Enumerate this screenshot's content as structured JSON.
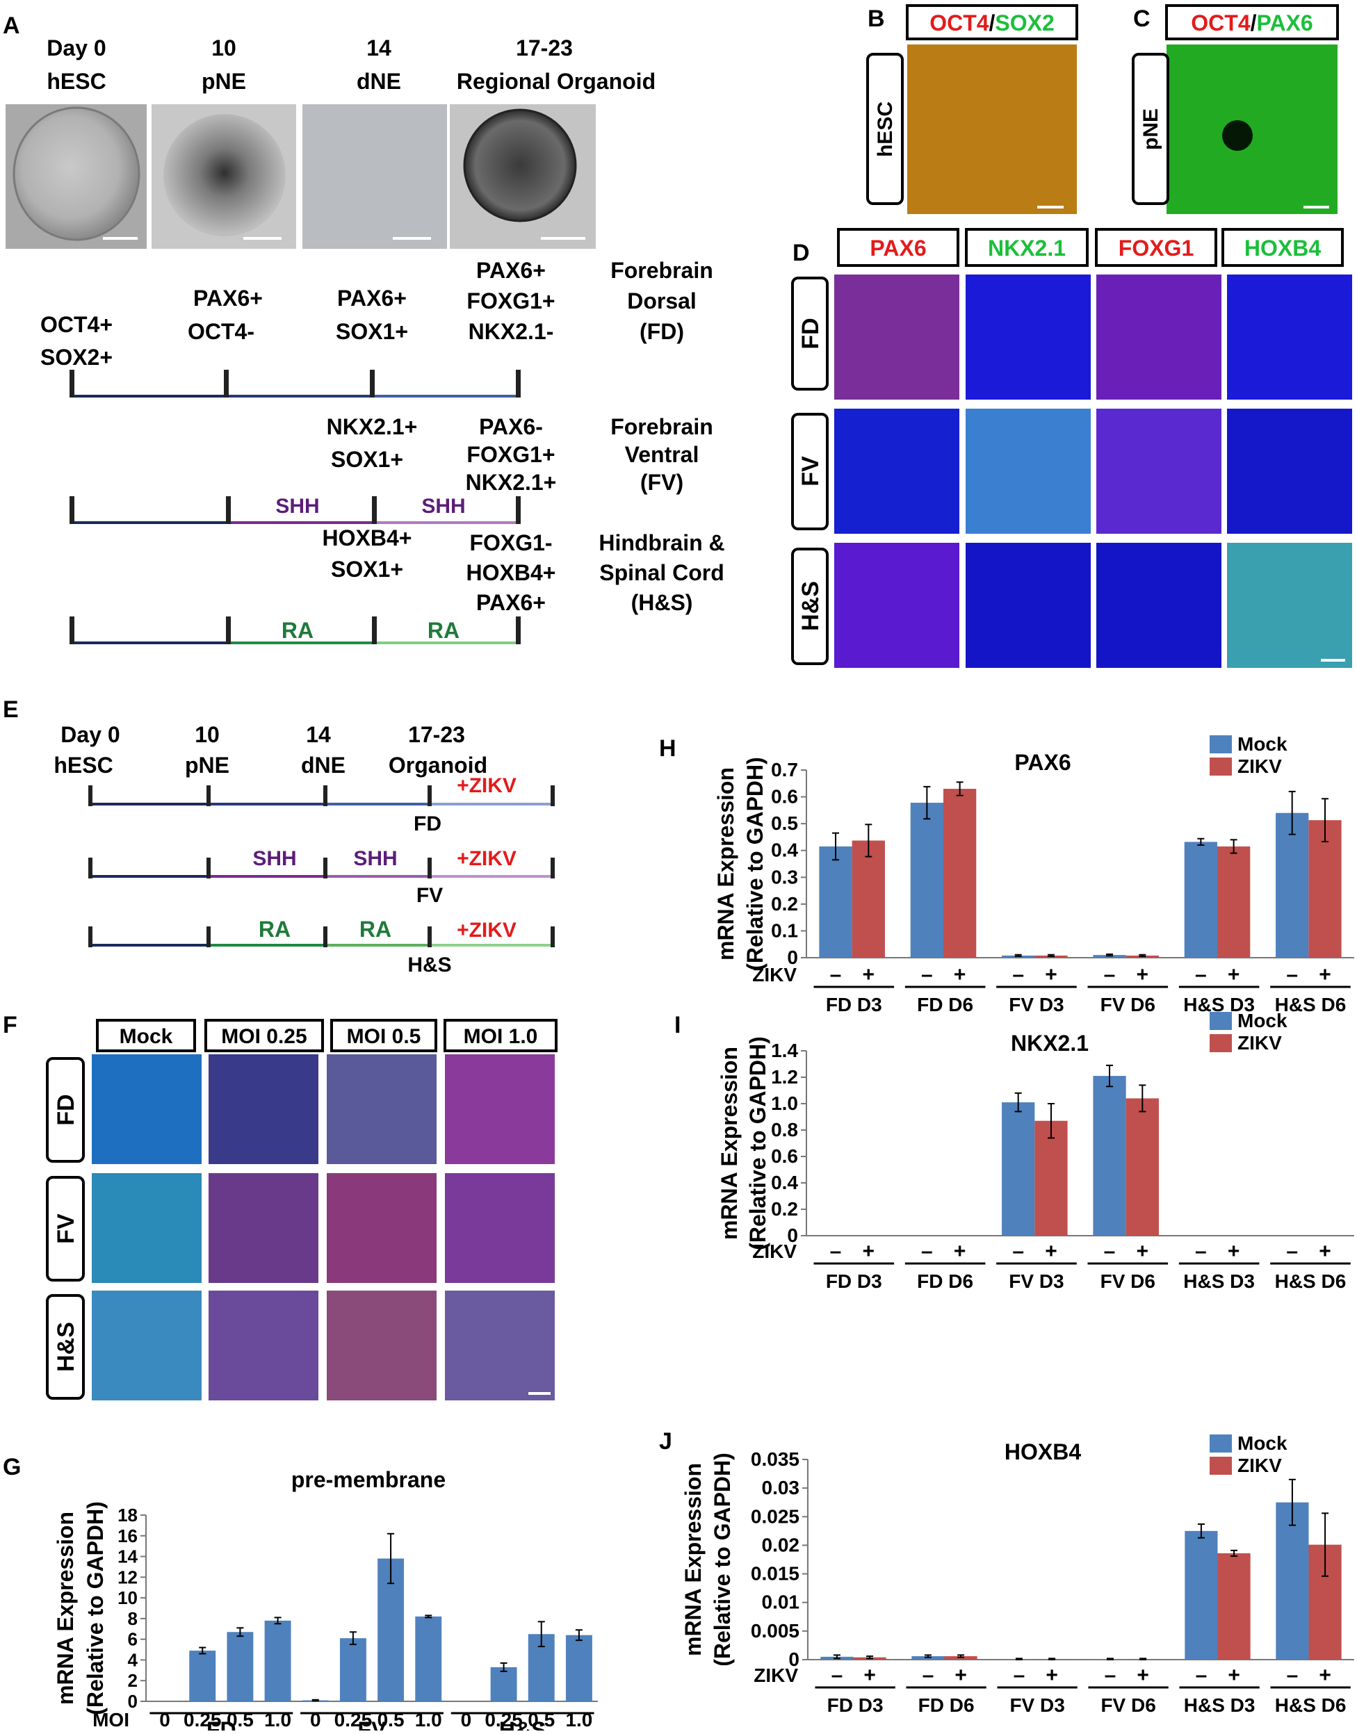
{
  "colors": {
    "mock": "#4f81bd",
    "zikv": "#c0504d",
    "shh": "#5b1d7a",
    "ra": "#1f7a3a",
    "red": "#e31b1b",
    "green": "#1bbf3a",
    "dark_line": "#1a2a5c"
  },
  "panel_letters": [
    "A",
    "B",
    "C",
    "D",
    "E",
    "F",
    "G",
    "H",
    "I",
    "J"
  ],
  "panelA": {
    "timepoints": [
      {
        "day": "Day 0",
        "stage": "hESC"
      },
      {
        "day": "10",
        "stage": "pNE"
      },
      {
        "day": "14",
        "stage": "dNE"
      },
      {
        "day": "17-23",
        "stage": "Regional Organoid"
      }
    ],
    "markers_day0": [
      "OCT4+",
      "SOX2+"
    ],
    "markers_day10": [
      "PAX6+",
      "OCT4-"
    ],
    "markers_day14_fd": [
      "PAX6+",
      "SOX1+"
    ],
    "markers_end_fd": [
      "PAX6+",
      "FOXG1+",
      "NKX2.1-"
    ],
    "region_fd": [
      "Forebrain",
      "Dorsal",
      "(FD)"
    ],
    "markers_day14_fv": [
      "NKX2.1+",
      "SOX1+"
    ],
    "markers_end_fv": [
      "PAX6-",
      "FOXG1+",
      "NKX2.1+"
    ],
    "region_fv": [
      "Forebrain",
      "Ventral",
      "(FV)"
    ],
    "markers_day14_hs": [
      "HOXB4+",
      "SOX1+"
    ],
    "markers_end_hs": [
      "FOXG1-",
      "HOXB4+",
      "PAX6+"
    ],
    "region_hs": [
      "Hindbrain &",
      "Spinal Cord",
      "(H&S)"
    ],
    "treat_shh": "SHH",
    "treat_ra": "RA"
  },
  "panelB": {
    "label_red": "OCT4",
    "label_green": "SOX2",
    "row": "hESC"
  },
  "panelC": {
    "label_red": "OCT4",
    "label_green": "PAX6",
    "row": "pNE"
  },
  "panelD": {
    "columns": [
      "PAX6",
      "NKX2.1",
      "FOXG1",
      "HOXB4"
    ],
    "rows": [
      "FD",
      "FV",
      "H&S"
    ]
  },
  "panelE": {
    "timepoints": [
      {
        "day": "Day 0",
        "stage": "hESC"
      },
      {
        "day": "10",
        "stage": "pNE"
      },
      {
        "day": "14",
        "stage": "dNE"
      },
      {
        "day": "17-23",
        "stage": "Organoid"
      }
    ],
    "zikv": "+ZIKV",
    "rows": [
      "FD",
      "FV",
      "H&S"
    ],
    "treat_shh": "SHH",
    "treat_ra": "RA"
  },
  "panelF": {
    "columns": [
      "Mock",
      "MOI 0.25",
      "MOI 0.5",
      "MOI 1.0"
    ],
    "rows": [
      "FD",
      "FV",
      "H&S"
    ]
  },
  "chart_data": [
    {
      "id": "G",
      "type": "bar",
      "title": "pre-membrane",
      "ylabel": "mRNA Expression (Relative to GAPDH)",
      "ylim": [
        0,
        18
      ],
      "yticks": [
        0,
        2,
        4,
        6,
        8,
        10,
        12,
        14,
        16,
        18
      ],
      "x_axis_name": "MOI",
      "categories": [
        "0",
        "0.25",
        "0.5",
        "1.0",
        "0",
        "0.25",
        "0.5",
        "1.0",
        "0",
        "0.25",
        "0.5",
        "1.0"
      ],
      "groups": [
        "FD",
        "FV",
        "H&S"
      ],
      "values": [
        0,
        4.9,
        6.7,
        7.8,
        0.1,
        6.1,
        13.8,
        8.2,
        0,
        3.3,
        6.5,
        6.4
      ],
      "errors": [
        0,
        0.3,
        0.4,
        0.3,
        0.05,
        0.6,
        2.4,
        0.1,
        0,
        0.4,
        1.2,
        0.5
      ]
    },
    {
      "id": "H",
      "type": "bar",
      "title": "PAX6",
      "ylabel": "mRNA Expression (Relative to GAPDH)",
      "ylim": [
        0,
        0.7
      ],
      "yticks": [
        0,
        0.1,
        0.2,
        0.3,
        0.4,
        0.5,
        0.6,
        0.7
      ],
      "ytick_labels": [
        "0",
        "0.1",
        "0.2",
        "0.3",
        "0.4",
        "0.5",
        "0.6",
        "0.7"
      ],
      "x_axis_name": "ZIKV",
      "signs": [
        "–",
        "+"
      ],
      "categories": [
        "FD D3",
        "FD D6",
        "FV D3",
        "FV D6",
        "H&S D3",
        "H&S D6"
      ],
      "series": [
        {
          "name": "Mock",
          "values": [
            0.415,
            0.578,
            0.008,
            0.01,
            0.432,
            0.54
          ],
          "errors": [
            0.05,
            0.06,
            0.003,
            0.003,
            0.012,
            0.08
          ]
        },
        {
          "name": "ZIKV",
          "values": [
            0.437,
            0.63,
            0.008,
            0.008,
            0.415,
            0.513
          ],
          "errors": [
            0.06,
            0.025,
            0.003,
            0.003,
            0.025,
            0.08
          ]
        }
      ],
      "legend": "top-right"
    },
    {
      "id": "I",
      "type": "bar",
      "title": "NKX2.1",
      "ylabel": "mRNA Expression (Relative to GAPDH)",
      "ylim": [
        0,
        1.4
      ],
      "yticks": [
        0,
        0.2,
        0.4,
        0.6,
        0.8,
        1.0,
        1.2,
        1.4
      ],
      "ytick_labels": [
        "0",
        "0.2",
        "0.4",
        "0.6",
        "0.8",
        "1.0",
        "1.2",
        "1.4"
      ],
      "x_axis_name": "ZIKV",
      "signs": [
        "–",
        "+"
      ],
      "categories": [
        "FD D3",
        "FD D6",
        "FV D3",
        "FV D6",
        "H&S D3",
        "H&S D6"
      ],
      "series": [
        {
          "name": "Mock",
          "values": [
            0,
            0,
            1.01,
            1.21,
            0,
            0
          ],
          "errors": [
            0,
            0,
            0.07,
            0.08,
            0,
            0
          ]
        },
        {
          "name": "ZIKV",
          "values": [
            0,
            0,
            0.87,
            1.04,
            0,
            0
          ],
          "errors": [
            0,
            0,
            0.13,
            0.1,
            0,
            0
          ]
        }
      ],
      "legend": "top-right"
    },
    {
      "id": "J",
      "type": "bar",
      "title": "HOXB4",
      "ylabel": "mRNA Expression (Relative to GAPDH)",
      "ylim": [
        0,
        0.035
      ],
      "yticks": [
        0,
        0.005,
        0.01,
        0.015,
        0.02,
        0.025,
        0.03,
        0.035
      ],
      "ytick_labels": [
        "0",
        "0.005",
        "0.01",
        "0.015",
        "0.02",
        "0.025",
        "0.03",
        "0.035"
      ],
      "x_axis_name": "ZIKV",
      "signs": [
        "–",
        "+"
      ],
      "categories": [
        "FD D3",
        "FD D6",
        "FV D3",
        "FV D6",
        "H&S D3",
        "H&S D6"
      ],
      "series": [
        {
          "name": "Mock",
          "values": [
            0.0005,
            0.0006,
            0.0001,
            0.0001,
            0.0225,
            0.0275
          ],
          "errors": [
            0.0003,
            0.0002,
            0.0001,
            0.0001,
            0.0012,
            0.004
          ]
        },
        {
          "name": "ZIKV",
          "values": [
            0.0004,
            0.0006,
            0.0001,
            0.0001,
            0.0186,
            0.0201
          ],
          "errors": [
            0.0002,
            0.0002,
            0.0001,
            0.0001,
            0.0005,
            0.0055
          ]
        }
      ],
      "legend": "top-right"
    }
  ]
}
